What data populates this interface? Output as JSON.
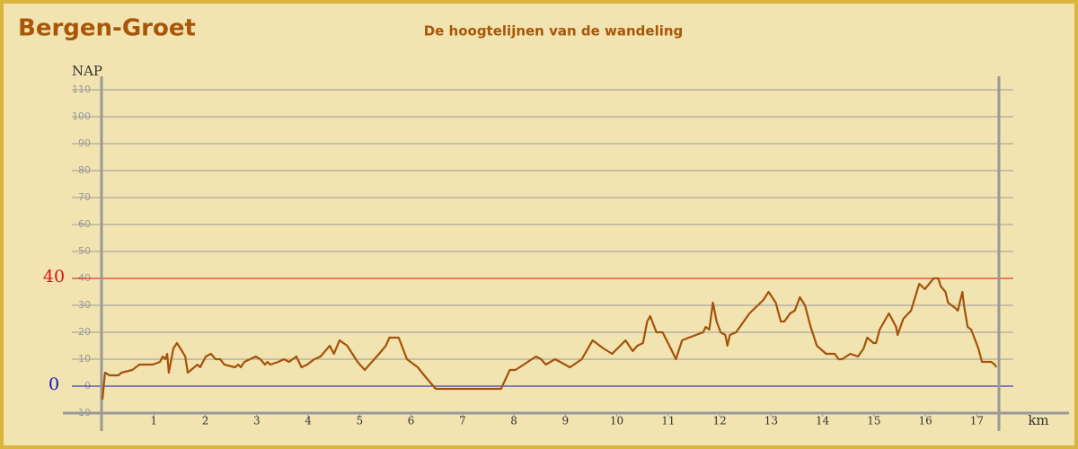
{
  "chart_data": {
    "type": "line",
    "title": "Bergen-Groet",
    "subtitle": "De hoogtelijnen van de wandeling",
    "y_label": "NAP",
    "x_label": "km",
    "xlim": [
      0,
      17.43
    ],
    "ylim": [
      -10,
      110
    ],
    "xticks": [
      1,
      2,
      3,
      4,
      5,
      6,
      7,
      8,
      9,
      10,
      11,
      12,
      13,
      14,
      15,
      16,
      17
    ],
    "yticks": [
      -10,
      0,
      10,
      20,
      30,
      40,
      50,
      60,
      70,
      80,
      90,
      100,
      110
    ],
    "grid": true,
    "reference_lines": [
      {
        "value": 40,
        "color": "#dd1111"
      },
      {
        "value": 0,
        "color": "#1111cc"
      }
    ],
    "x": [
      0,
      0.05,
      0.14,
      0.31,
      0.37,
      0.58,
      0.72,
      0.98,
      1.12,
      1.17,
      1.22,
      1.26,
      1.29,
      1.38,
      1.45,
      1.55,
      1.61,
      1.66,
      1.85,
      1.9,
      2.01,
      2.11,
      2.2,
      2.29,
      2.37,
      2.58,
      2.64,
      2.69,
      2.76,
      2.98,
      3.07,
      3.16,
      3.21,
      3.26,
      3.42,
      3.53,
      3.63,
      3.77,
      3.87,
      3.98,
      4.12,
      4.24,
      4.42,
      4.5,
      4.61,
      4.76,
      4.96,
      5.1,
      5.24,
      5.38,
      5.51,
      5.58,
      5.76,
      5.92,
      6.13,
      6.3,
      6.48,
      7.75,
      7.92,
      8.03,
      8.27,
      8.43,
      8.53,
      8.62,
      8.8,
      9.09,
      9.32,
      9.53,
      9.74,
      9.91,
      10.12,
      10.17,
      10.31,
      10.4,
      10.51,
      10.59,
      10.65,
      10.77,
      10.89,
      11.05,
      11.15,
      11.27,
      11.4,
      11.54,
      11.68,
      11.73,
      11.8,
      11.87,
      11.94,
      12.02,
      12.11,
      12.15,
      12.2,
      12.32,
      12.58,
      12.85,
      12.95,
      13.09,
      13.19,
      13.26,
      13.37,
      13.46,
      13.56,
      13.66,
      13.77,
      13.89,
      14.07,
      14.24,
      14.31,
      14.38,
      14.54,
      14.69,
      14.8,
      14.87,
      14.99,
      15.04,
      15.11,
      15.29,
      15.43,
      15.46,
      15.57,
      15.72,
      15.88,
      15.99,
      16.16,
      16.25,
      16.3,
      16.39,
      16.44,
      16.58,
      16.63,
      16.72,
      16.75,
      16.82,
      16.89,
      17.03,
      17.1,
      17.28,
      17.35,
      17.38
    ],
    "series": [
      {
        "color": "#a4520a",
        "values": [
          -5,
          5,
          4,
          4,
          5,
          6,
          8,
          8,
          9,
          11,
          10,
          12,
          5,
          14,
          16,
          13,
          11,
          5,
          8,
          7,
          11,
          12,
          10,
          10,
          8,
          7,
          8,
          7,
          9,
          11,
          10,
          8,
          9,
          8,
          9,
          10,
          9,
          11,
          7,
          8,
          10,
          11,
          15,
          12,
          17,
          15,
          9,
          6,
          9,
          12,
          15,
          18,
          18,
          10,
          7,
          3,
          -1,
          -1,
          6,
          6,
          9,
          11,
          10,
          8,
          10,
          7,
          10,
          17,
          14,
          12,
          16,
          17,
          13,
          15,
          16,
          24,
          26,
          20,
          20,
          14,
          10,
          17,
          18,
          19,
          20,
          22,
          21,
          31,
          24,
          20,
          19,
          15,
          19,
          20,
          27,
          32,
          35,
          31,
          24,
          24,
          27,
          28,
          33,
          30,
          22,
          15,
          12,
          12,
          10,
          10,
          12,
          11,
          14,
          18,
          16,
          16,
          21,
          27,
          22,
          19,
          25,
          28,
          38,
          36,
          40,
          40,
          37,
          35,
          31,
          29,
          28,
          35,
          30,
          22,
          21,
          14,
          9,
          9,
          8,
          7
        ]
      }
    ]
  }
}
